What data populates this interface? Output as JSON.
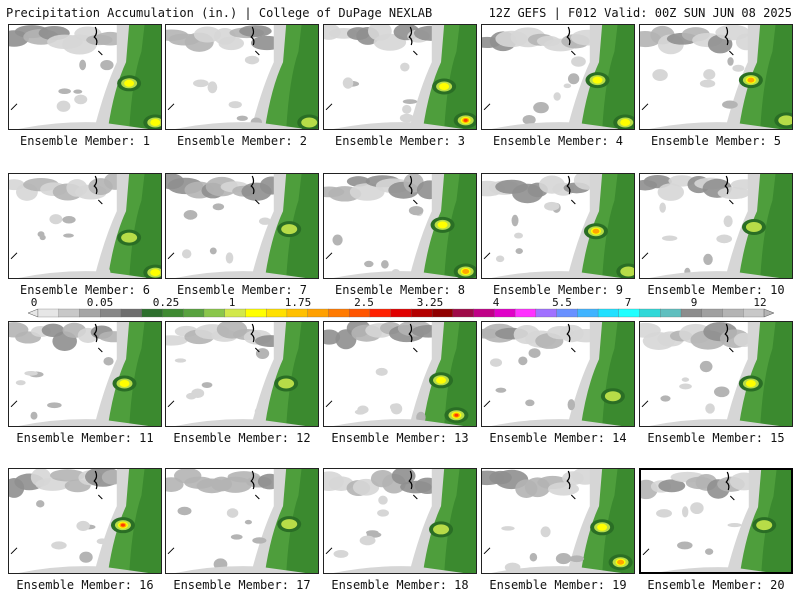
{
  "header": {
    "left": "Precipitation Accumulation (in.) | College of DuPage NEXLAB",
    "right": "12Z GEFS | F012 Valid: 00Z SUN JUN 08 2025"
  },
  "legend": {
    "tick_labels": [
      "0",
      "0.05",
      "0.25",
      "1",
      "1.75",
      "2.5",
      "3.25",
      "4",
      "5.5",
      "7",
      "9",
      "12"
    ],
    "colors": [
      "#e6e6e6",
      "#c8c8c8",
      "#a5a5a5",
      "#878787",
      "#6e6e6e",
      "#2e6f2e",
      "#3f8a32",
      "#58a23f",
      "#8ac64b",
      "#d2e84b",
      "#ffff00",
      "#ffe000",
      "#ffc000",
      "#ffa000",
      "#ff7a00",
      "#ff5500",
      "#ff2000",
      "#e00000",
      "#b40000",
      "#900000",
      "#9e0a48",
      "#c00087",
      "#e000c8",
      "#ff30ff",
      "#a070ff",
      "#6890ff",
      "#40b4ff",
      "#20e0ff",
      "#20ffff",
      "#30d8d8",
      "#5fbfbf",
      "#8c8c8c",
      "#a0a0a0",
      "#b4b4b4",
      "#c8c8c8"
    ]
  },
  "members": [
    {
      "label": "Ensemble Member: 1",
      "hot": [
        [
          0.78,
          0.55,
          1.5
        ],
        [
          0.95,
          0.92,
          1.8
        ]
      ]
    },
    {
      "label": "Ensemble Member: 2",
      "hot": [
        [
          0.93,
          0.92,
          1.2
        ]
      ]
    },
    {
      "label": "Ensemble Member: 3",
      "hot": [
        [
          0.78,
          0.58,
          1.5
        ],
        [
          0.92,
          0.9,
          3.4
        ]
      ]
    },
    {
      "label": "Ensemble Member: 4",
      "hot": [
        [
          0.75,
          0.52,
          1.8
        ],
        [
          0.93,
          0.92,
          1.5
        ]
      ]
    },
    {
      "label": "Ensemble Member: 5",
      "hot": [
        [
          0.72,
          0.52,
          2.6
        ],
        [
          0.95,
          0.9,
          1.3
        ]
      ]
    },
    {
      "label": "Ensemble Member: 6",
      "hot": [
        [
          0.78,
          0.6,
          1.2
        ],
        [
          0.95,
          0.93,
          1.6
        ]
      ]
    },
    {
      "label": "Ensemble Member: 7",
      "hot": [
        [
          0.8,
          0.52,
          1.1
        ]
      ]
    },
    {
      "label": "Ensemble Member: 8",
      "hot": [
        [
          0.77,
          0.48,
          1.6
        ],
        [
          0.92,
          0.92,
          2.0
        ]
      ]
    },
    {
      "label": "Ensemble Member: 9",
      "hot": [
        [
          0.74,
          0.54,
          2.7
        ],
        [
          0.95,
          0.92,
          1.2
        ]
      ]
    },
    {
      "label": "Ensemble Member: 10",
      "hot": [
        [
          0.74,
          0.5,
          1.3
        ]
      ]
    },
    {
      "label": "Ensemble Member: 11",
      "hot": [
        [
          0.75,
          0.58,
          1.9
        ]
      ]
    },
    {
      "label": "Ensemble Member: 12",
      "hot": [
        [
          0.78,
          0.58,
          1.4
        ]
      ]
    },
    {
      "label": "Ensemble Member: 13",
      "hot": [
        [
          0.76,
          0.55,
          1.9
        ],
        [
          0.86,
          0.88,
          3.3
        ]
      ]
    },
    {
      "label": "Ensemble Member: 14",
      "hot": [
        [
          0.85,
          0.7,
          1.0
        ]
      ]
    },
    {
      "label": "Ensemble Member: 15",
      "hot": [
        [
          0.72,
          0.58,
          1.8
        ]
      ]
    },
    {
      "label": "Ensemble Member: 16",
      "hot": [
        [
          0.74,
          0.53,
          3.0
        ]
      ]
    },
    {
      "label": "Ensemble Member: 17",
      "hot": [
        [
          0.8,
          0.52,
          1.2
        ]
      ]
    },
    {
      "label": "Ensemble Member: 18",
      "hot": [
        [
          0.76,
          0.57,
          1.4
        ]
      ]
    },
    {
      "label": "Ensemble Member: 19",
      "hot": [
        [
          0.78,
          0.55,
          1.6
        ],
        [
          0.9,
          0.88,
          2.1
        ]
      ]
    },
    {
      "label": "Ensemble Member: 20",
      "hot": [
        [
          0.8,
          0.52,
          1.3
        ]
      ]
    }
  ],
  "scale_colors": {
    "g1": "#d6d6d6",
    "g2": "#b4b4b4",
    "g3": "#8f8f8f",
    "green_light": "#4e9e3c",
    "green_mid": "#3b8a2f",
    "green_dark": "#2a6e25",
    "lime": "#b7dc48",
    "yellow": "#ffff00",
    "orange": "#ffa500",
    "red": "#ff3a00"
  }
}
